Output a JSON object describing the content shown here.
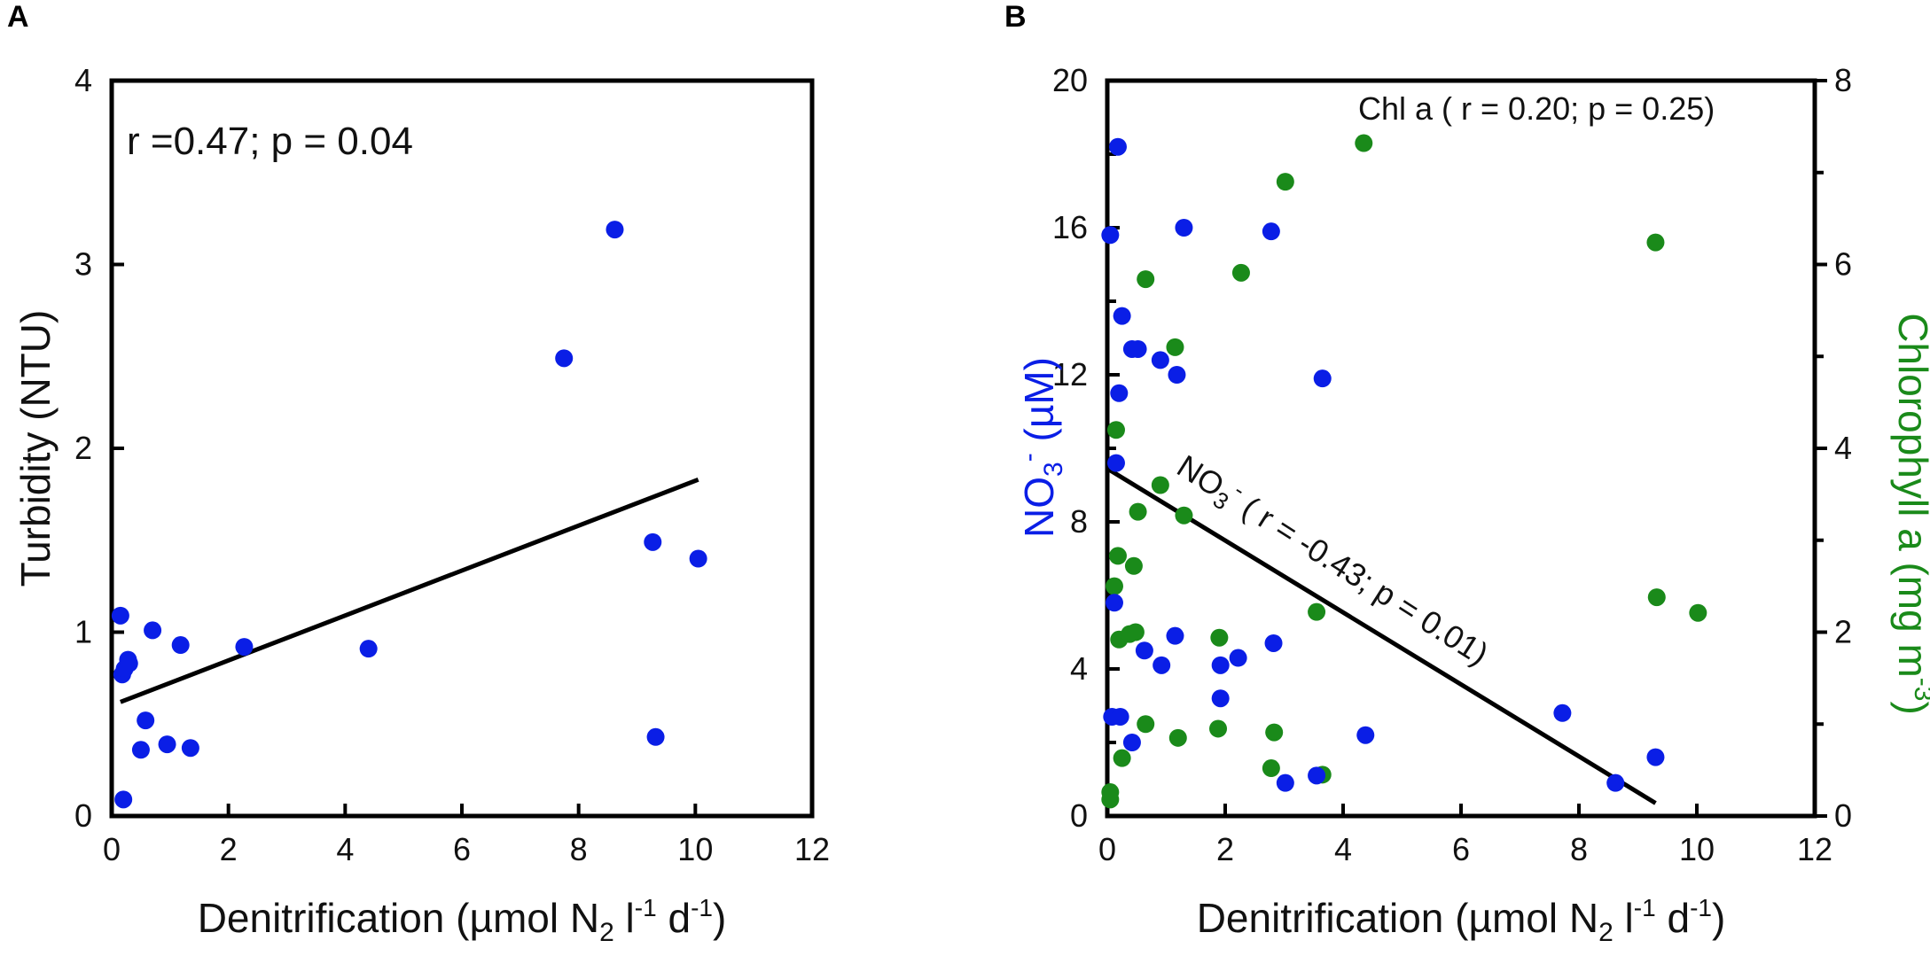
{
  "chart_data": [
    {
      "panel_label": "A",
      "type": "scatter",
      "xlabel": {
        "main": "Denitrification (µmol N",
        "sub": "2",
        "l": " l",
        "lsup": "-1",
        "d": " d",
        "dsup": "-1",
        "close": ")"
      },
      "ylabel": "Turbidity (NTU)",
      "xlim": [
        0,
        12
      ],
      "ylim": [
        0,
        4
      ],
      "xticks": [
        "0",
        "2",
        "4",
        "6",
        "8",
        "10",
        "12"
      ],
      "yticks": [
        "0",
        "1",
        "2",
        "3",
        "4"
      ],
      "annotation": "r =0.47; p = 0.04",
      "series": [
        {
          "name": "Turbidity",
          "color": "#0a1ee6",
          "points": [
            {
              "x": 0.15,
              "y": 1.09
            },
            {
              "x": 0.18,
              "y": 0.77
            },
            {
              "x": 0.22,
              "y": 0.8
            },
            {
              "x": 0.28,
              "y": 0.85
            },
            {
              "x": 0.3,
              "y": 0.83
            },
            {
              "x": 0.2,
              "y": 0.09
            },
            {
              "x": 0.5,
              "y": 0.36
            },
            {
              "x": 0.58,
              "y": 0.52
            },
            {
              "x": 0.7,
              "y": 1.01
            },
            {
              "x": 0.95,
              "y": 0.39
            },
            {
              "x": 1.18,
              "y": 0.93
            },
            {
              "x": 1.35,
              "y": 0.37
            },
            {
              "x": 2.27,
              "y": 0.92
            },
            {
              "x": 4.4,
              "y": 0.91
            },
            {
              "x": 7.75,
              "y": 2.49
            },
            {
              "x": 8.62,
              "y": 3.19
            },
            {
              "x": 9.27,
              "y": 1.49
            },
            {
              "x": 9.32,
              "y": 0.43
            },
            {
              "x": 10.05,
              "y": 1.4
            }
          ]
        }
      ],
      "fit_line": {
        "x": [
          0.15,
          10.05
        ],
        "y": [
          0.62,
          1.83
        ]
      }
    },
    {
      "panel_label": "B",
      "type": "scatter",
      "xlabel": {
        "main": "Denitrification (µmol N",
        "sub": "2",
        "l": " l",
        "lsup": "-1",
        "d": " d",
        "dsup": "-1",
        "close": ")"
      },
      "ylabel_left": {
        "main": "NO",
        "sub": "3",
        "sup": "-",
        "rest": " (µM)"
      },
      "ylabel_right": {
        "main": "Chlorophyll a (mg m",
        "sup": "-3",
        "close": ")"
      },
      "xlim": [
        0,
        12
      ],
      "ylim_left": [
        0,
        20
      ],
      "ylim_right": [
        0,
        8
      ],
      "xticks": [
        "0",
        "2",
        "4",
        "6",
        "8",
        "10",
        "12"
      ],
      "yticks_left": [
        "0",
        "4",
        "8",
        "12",
        "16",
        "20"
      ],
      "yticks_right": [
        "0",
        "2",
        "4",
        "6",
        "8"
      ],
      "annotation_chl": "Chl a ( r = 0.20; p = 0.25)",
      "annotation_no3": {
        "main": "NO",
        "sub": "3",
        "sup": "-",
        "rest": " ( r = -0.43; p = 0.01)"
      },
      "series": [
        {
          "name": "NO3-",
          "color": "#0a1ee6",
          "axis": "left",
          "points": [
            {
              "x": 0.05,
              "y": 15.8
            },
            {
              "x": 0.18,
              "y": 18.2
            },
            {
              "x": 0.25,
              "y": 13.6
            },
            {
              "x": 0.2,
              "y": 11.5
            },
            {
              "x": 0.15,
              "y": 9.6
            },
            {
              "x": 0.12,
              "y": 5.8
            },
            {
              "x": 0.08,
              "y": 2.7
            },
            {
              "x": 0.22,
              "y": 2.7
            },
            {
              "x": 0.42,
              "y": 12.7
            },
            {
              "x": 0.52,
              "y": 12.7
            },
            {
              "x": 0.42,
              "y": 2.0
            },
            {
              "x": 0.63,
              "y": 4.5
            },
            {
              "x": 0.9,
              "y": 12.4
            },
            {
              "x": 1.18,
              "y": 12.0
            },
            {
              "x": 1.3,
              "y": 16.0
            },
            {
              "x": 0.92,
              "y": 4.1
            },
            {
              "x": 1.15,
              "y": 4.9
            },
            {
              "x": 1.92,
              "y": 4.1
            },
            {
              "x": 1.92,
              "y": 3.2
            },
            {
              "x": 2.22,
              "y": 4.3
            },
            {
              "x": 2.78,
              "y": 15.9
            },
            {
              "x": 2.82,
              "y": 4.7
            },
            {
              "x": 3.02,
              "y": 0.9
            },
            {
              "x": 3.55,
              "y": 1.1
            },
            {
              "x": 3.65,
              "y": 11.9
            },
            {
              "x": 4.38,
              "y": 2.2
            },
            {
              "x": 7.72,
              "y": 2.8
            },
            {
              "x": 8.62,
              "y": 0.9
            },
            {
              "x": 9.3,
              "y": 1.6
            }
          ]
        },
        {
          "name": "Chlorophyll a",
          "color": "#1a8a1a",
          "axis": "right",
          "points": [
            {
              "x": 0.05,
              "y": 0.18
            },
            {
              "x": 0.05,
              "y": 0.26
            },
            {
              "x": 0.15,
              "y": 4.2
            },
            {
              "x": 0.12,
              "y": 2.5
            },
            {
              "x": 0.18,
              "y": 2.83
            },
            {
              "x": 0.2,
              "y": 1.92
            },
            {
              "x": 0.25,
              "y": 0.63
            },
            {
              "x": 0.38,
              "y": 1.98
            },
            {
              "x": 0.45,
              "y": 2.72
            },
            {
              "x": 0.48,
              "y": 2.0
            },
            {
              "x": 0.52,
              "y": 3.31
            },
            {
              "x": 0.65,
              "y": 5.84
            },
            {
              "x": 0.65,
              "y": 1.0
            },
            {
              "x": 0.9,
              "y": 3.6
            },
            {
              "x": 1.15,
              "y": 5.1
            },
            {
              "x": 1.2,
              "y": 0.85
            },
            {
              "x": 1.3,
              "y": 3.27
            },
            {
              "x": 1.9,
              "y": 1.94
            },
            {
              "x": 1.88,
              "y": 0.95
            },
            {
              "x": 2.27,
              "y": 5.91
            },
            {
              "x": 2.78,
              "y": 0.52
            },
            {
              "x": 2.83,
              "y": 0.91
            },
            {
              "x": 3.02,
              "y": 6.9
            },
            {
              "x": 3.55,
              "y": 2.22
            },
            {
              "x": 3.65,
              "y": 0.45
            },
            {
              "x": 4.35,
              "y": 7.32
            },
            {
              "x": 9.3,
              "y": 6.24
            },
            {
              "x": 9.32,
              "y": 2.38
            },
            {
              "x": 10.02,
              "y": 2.21
            }
          ]
        }
      ],
      "fit_line_no3": {
        "x": [
          0.0,
          9.3
        ],
        "y": [
          9.45,
          0.35
        ]
      }
    }
  ]
}
